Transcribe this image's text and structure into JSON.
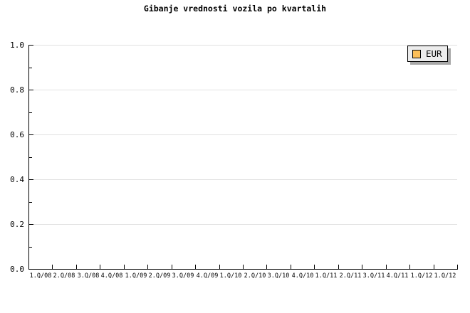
{
  "chart_data": {
    "type": "line",
    "title": "Gibanje vrednosti vozila po kvartalih",
    "categories": [
      "1.Q/08",
      "2.Q/08",
      "3.Q/08",
      "4.Q/08",
      "1.Q/09",
      "2.Q/09",
      "3.Q/09",
      "4.Q/09",
      "1.Q/10",
      "2.Q/10",
      "3.Q/10",
      "4.Q/10",
      "1.Q/11",
      "2.Q/11",
      "3.Q/11",
      "4.Q/11",
      "1.Q/12",
      "1.Q/12"
    ],
    "series": [
      {
        "name": "EUR",
        "color": "#fcbf59",
        "values": []
      }
    ],
    "xlabel": "",
    "ylabel": "",
    "ylim": [
      0.0,
      1.0
    ],
    "ytick_step": 0.2,
    "y_minor_step": 0.1,
    "ytick_labels": [
      "0.0",
      "0.2",
      "0.4",
      "0.6",
      "0.8",
      "1.0"
    ],
    "grid": "horizontal-major",
    "grid_color": "#e2e2e2",
    "legend_position": "top-right",
    "plot_note": "empty plot area, no data points drawn"
  }
}
